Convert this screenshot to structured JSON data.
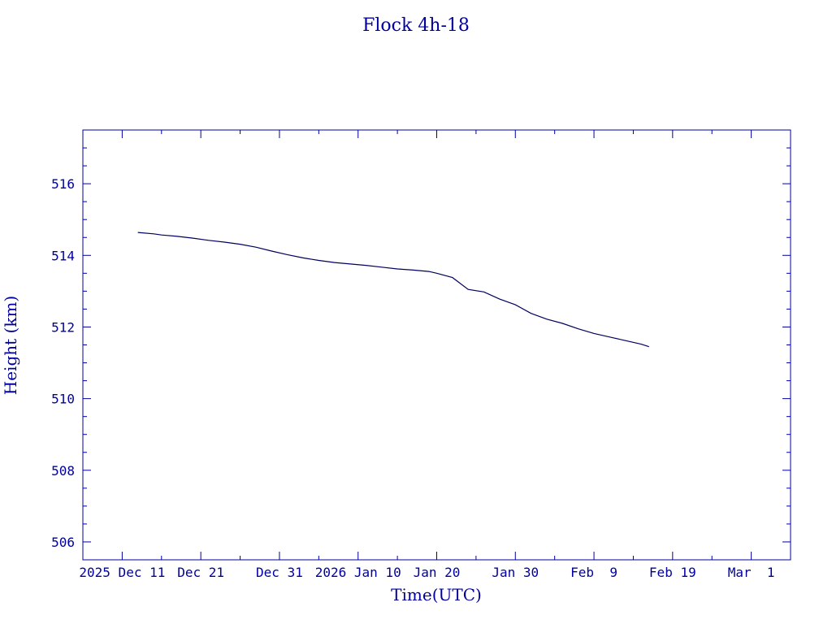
{
  "chart_data": {
    "type": "line",
    "title": "Flock 4h-18",
    "xlabel": "Time(UTC)",
    "ylabel": "Height (km)",
    "ylim": [
      505.5,
      517.5
    ],
    "yticks": [
      506,
      508,
      510,
      512,
      514,
      516
    ],
    "ytick_labels": [
      "506",
      "508",
      "510",
      "512",
      "514",
      "516"
    ],
    "xlim": [
      "2025-12-06",
      "2026-03-06"
    ],
    "xticks": [
      {
        "date": "2025-12-11",
        "label": "2025 Dec 11"
      },
      {
        "date": "2025-12-21",
        "label": "Dec 21"
      },
      {
        "date": "2025-12-31",
        "label": "Dec 31"
      },
      {
        "date": "2026-01-10",
        "label": "2026 Jan 10"
      },
      {
        "date": "2026-01-20",
        "label": "Jan 20"
      },
      {
        "date": "2026-01-30",
        "label": "Jan 30"
      },
      {
        "date": "2026-02-09",
        "label": "Feb  9"
      },
      {
        "date": "2026-02-19",
        "label": "Feb 19"
      },
      {
        "date": "2026-03-01",
        "label": "Mar  1"
      }
    ],
    "grid": false,
    "colors": {
      "axis": "#0000a0",
      "line": "#000060"
    },
    "series": [
      {
        "x": [
          "2025-12-13",
          "2025-12-15",
          "2025-12-16",
          "2025-12-18",
          "2025-12-20",
          "2025-12-22",
          "2025-12-24",
          "2025-12-26",
          "2025-12-28",
          "2025-12-30",
          "2026-01-01",
          "2026-01-03",
          "2026-01-05",
          "2026-01-07",
          "2026-01-09",
          "2026-01-11",
          "2026-01-13",
          "2026-01-15",
          "2026-01-17",
          "2026-01-19",
          "2026-01-20",
          "2026-01-22",
          "2026-01-24",
          "2026-01-26",
          "2026-01-28",
          "2026-01-30",
          "2026-02-01",
          "2026-02-03",
          "2026-02-05",
          "2026-02-07",
          "2026-02-09",
          "2026-02-11",
          "2026-02-13",
          "2026-02-15",
          "2026-02-16"
        ],
        "y": [
          514.64,
          514.6,
          514.57,
          514.53,
          514.48,
          514.42,
          514.37,
          514.31,
          514.23,
          514.12,
          514.02,
          513.93,
          513.86,
          513.8,
          513.76,
          513.72,
          513.67,
          513.62,
          513.59,
          513.55,
          513.5,
          513.38,
          513.05,
          512.98,
          512.78,
          512.62,
          512.38,
          512.22,
          512.1,
          511.95,
          511.82,
          511.72,
          511.62,
          511.52,
          511.45
        ]
      }
    ]
  }
}
